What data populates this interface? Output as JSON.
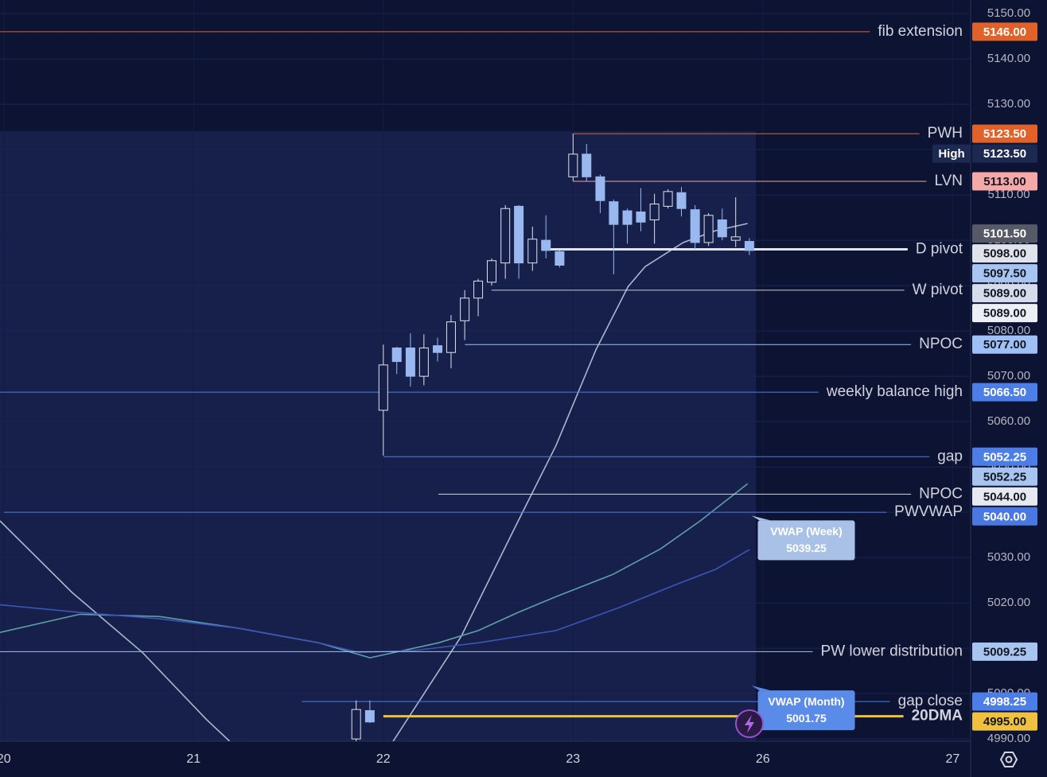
{
  "chart_data": {
    "type": "candlestick",
    "xlim": [
      -0.02,
      5.095
    ],
    "ylim": [
      4989.5,
      5153
    ],
    "xticks": [
      {
        "value": 0,
        "label": "20"
      },
      {
        "value": 1,
        "label": "21"
      },
      {
        "value": 2,
        "label": "22"
      },
      {
        "value": 3,
        "label": "23"
      },
      {
        "value": 4,
        "label": "26"
      },
      {
        "value": 5,
        "label": "27"
      }
    ],
    "yticks": [
      {
        "value": 4990,
        "label": "4990.00"
      },
      {
        "value": 5000,
        "label": "5000.00"
      },
      {
        "value": 5010,
        "label": "5010.00"
      },
      {
        "value": 5020,
        "label": "5020.00"
      },
      {
        "value": 5030,
        "label": "5030.00"
      },
      {
        "value": 5040,
        "label": "5040.00"
      },
      {
        "value": 5050,
        "label": "5050.00"
      },
      {
        "value": 5060,
        "label": "5060.00"
      },
      {
        "value": 5070,
        "label": "5070.00"
      },
      {
        "value": 5080,
        "label": "5080.00"
      },
      {
        "value": 5090,
        "label": "5090.00"
      },
      {
        "value": 5100,
        "label": "5100.00"
      },
      {
        "value": 5110,
        "label": "5110.00"
      },
      {
        "value": 5120,
        "label": "5120.00"
      },
      {
        "value": 5130,
        "label": "5130.00"
      },
      {
        "value": 5140,
        "label": "5140.00"
      },
      {
        "value": 5150,
        "label": "5150.00"
      }
    ],
    "grid": true,
    "up_color": "#e0e3eb",
    "down_color": "#9ab8f0",
    "x": [
      1.857,
      1.929,
      2,
      2.071,
      2.143,
      2.214,
      2.286,
      2.357,
      2.429,
      2.5,
      2.571,
      2.643,
      2.714,
      2.786,
      2.857,
      2.929,
      3,
      3.071,
      3.143,
      3.214,
      3.286,
      3.357,
      3.429,
      3.5,
      3.571,
      3.643,
      3.714,
      3.786,
      3.857,
      3.929
    ],
    "open": [
      4990,
      4996.25,
      5062.5,
      5076.25,
      5076.25,
      5070,
      5076.75,
      5075.25,
      5082.25,
      5087.25,
      5090.75,
      5095,
      5107.5,
      5095,
      5100,
      5097.5,
      5114,
      5119,
      5114,
      5108.5,
      5106.5,
      5106.25,
      5104.5,
      5107.5,
      5110.5,
      5106.75,
      5099.5,
      5104.5,
      5100,
      5099.75
    ],
    "high": [
      4998.5,
      4998.5,
      5077,
      5076.5,
      5079.5,
      5079.25,
      5078.5,
      5083.5,
      5089,
      5091.5,
      5096,
      5107.75,
      5107.75,
      5103,
      5105.5,
      5097.75,
      5123.5,
      5121.25,
      5114.5,
      5109,
      5107,
      5111.5,
      5110.25,
      5111.25,
      5111.75,
      5107.75,
      5106,
      5107,
      5109.5,
      5100.5
    ],
    "low": [
      4988,
      4993.5,
      5052.5,
      5070.5,
      5067.75,
      5068,
      5073.25,
      5071.75,
      5078,
      5083.25,
      5090,
      5091.5,
      5091.5,
      5093.25,
      5096,
      5094,
      5113,
      5113,
      5106,
      5092.5,
      5099.25,
      5102,
      5099.25,
      5107,
      5105.25,
      5098,
      5098.75,
      5100,
      5098.5,
      5096.75
    ],
    "close": [
      4996.5,
      4993.75,
      5072.5,
      5073.25,
      5070,
      5076.25,
      5075.25,
      5082,
      5087.25,
      5091,
      5095.5,
      5107,
      5095,
      5100.25,
      5097.75,
      5094.5,
      5119,
      5114,
      5108.75,
      5103.5,
      5103.5,
      5104,
      5108,
      5110.75,
      5107,
      5099.5,
      5105.5,
      5100.75,
      5100.75,
      5097.75
    ],
    "lines": [
      {
        "color": "#a9b8cc",
        "x": [
          -0.02,
          0.36,
          0.73,
          1.07,
          1.19,
          1.6,
          2.03,
          2.41,
          2.7,
          2.91,
          3.12,
          3.29,
          3.38,
          3.58,
          3.75,
          3.92
        ],
        "values": [
          5038.1,
          5022.3,
          5009.1,
          4994.2,
          4989.5,
          null,
          4988.1,
          5012.6,
          5037.2,
          5054.7,
          5075.8,
          5089.8,
          5094.2,
          5099.5,
          5102.1,
          5103.7
        ]
      },
      {
        "color": "#5fa0a8",
        "x": [
          -0.02,
          0.4,
          0.82,
          1.24,
          1.66,
          1.93,
          2.29,
          2.5,
          2.71,
          2.91,
          3.21,
          3.46,
          3.67,
          3.92
        ],
        "values": [
          5013.5,
          5017.5,
          5017,
          5014.4,
          5011.2,
          5007.9,
          5011.2,
          5013.9,
          5017.9,
          5021.4,
          5026.3,
          5031.9,
          5038.1,
          5046.3
        ]
      },
      {
        "color": "#3d55b8",
        "x": [
          -0.02,
          0.4,
          0.82,
          1.24,
          1.66,
          1.87,
          2.16,
          2.5,
          2.91,
          3.25,
          3.54,
          3.75,
          3.93
        ],
        "values": [
          5019.6,
          5017.9,
          5016.5,
          5014.4,
          5011.2,
          5009.1,
          5009.5,
          5011.2,
          5013.9,
          5019.1,
          5024,
          5027.4,
          5031.8
        ]
      }
    ],
    "levels": [
      {
        "label": "fib extension",
        "price": 5146,
        "color": "#e0622a",
        "from": -0.02
      },
      {
        "label": "PWH",
        "price": 5123.5,
        "color": "#d06a40",
        "from": 3.0
      },
      {
        "label": "LVN",
        "price": 5113,
        "color": "#f0a0a0",
        "from": 3.0
      },
      {
        "label": "D pivot",
        "price": 5098,
        "color": "#e0e3eb",
        "from": 2.87,
        "width": 3
      },
      {
        "label": "W pivot",
        "price": 5089,
        "color": "#c8ccd8",
        "from": 2.57
      },
      {
        "label": "NPOC",
        "price": 5077,
        "color": "#9fc0f5",
        "from": 2.43
      },
      {
        "label": "weekly balance high",
        "price": 5066.5,
        "color": "#4d7ee8",
        "from": -0.02
      },
      {
        "label": "gap",
        "price": 5052.25,
        "color": "#4d7ee8",
        "from": 2.0
      },
      {
        "label": "NPOC",
        "price": 5044,
        "color": "#d0d4e0",
        "from": 2.29
      },
      {
        "label": "PWVWAP",
        "price": 5040,
        "color": "#4d7ee8",
        "from": 0.0
      },
      {
        "label": "PW lower distribution",
        "price": 5009.25,
        "color": "#a8c4f0",
        "from": -0.02
      },
      {
        "label": "gap close",
        "price": 4998.25,
        "color": "#4d7ee8",
        "from": 1.57
      },
      {
        "label": "20DMA",
        "price": 4995,
        "color": "#f0c040",
        "from": 2.0,
        "width": 3,
        "text_color": "#f0c040"
      }
    ],
    "price_tags": [
      {
        "value": 5146,
        "label": "5146.00",
        "color": "#e0622a",
        "text_color": "#ffffff"
      },
      {
        "value": 5123.5,
        "label": "5123.50",
        "color": "#e0622a",
        "text_color": "#ffffff"
      },
      {
        "value": 5123.5,
        "label": "5123.50",
        "color": "#1c2951",
        "text_color": "#ffffff",
        "note": "High"
      },
      {
        "value": 5113,
        "label": "5113.00",
        "color": "#f4a8a8",
        "text_color": "#131722"
      },
      {
        "value": 5101.5,
        "label": "5101.50",
        "color": "#555a66",
        "text_color": "#ffffff"
      },
      {
        "value": 5098,
        "label": "5098.00",
        "color": "#e0e3eb",
        "text_color": "#131722"
      },
      {
        "value": 5097.5,
        "label": "5097.50",
        "color": "#a8c4f0",
        "text_color": "#131722"
      },
      {
        "value": 5089,
        "label": "5089.00",
        "color": "#d6dcea",
        "text_color": "#131722"
      },
      {
        "value": 5089,
        "label": "5089.00",
        "color": "#eceff4",
        "text_color": "#131722"
      },
      {
        "value": 5077,
        "label": "5077.00",
        "color": "#9fc0f5",
        "text_color": "#131722"
      },
      {
        "value": 5066.5,
        "label": "5066.50",
        "color": "#4d7ee8",
        "text_color": "#ffffff"
      },
      {
        "value": 5052.25,
        "label": "5052.25",
        "color": "#4d7ee8",
        "text_color": "#ffffff"
      },
      {
        "value": 5052.25,
        "label": "5052.25",
        "color": "#a8c4f0",
        "text_color": "#131722"
      },
      {
        "value": 5044,
        "label": "5044.00",
        "color": "#e6e9f0",
        "text_color": "#131722"
      },
      {
        "value": 5040,
        "label": "5040.00",
        "color": "#4a78e0",
        "text_color": "#ffffff"
      },
      {
        "value": 5009.25,
        "label": "5009.25",
        "color": "#a8c4f0",
        "text_color": "#131722"
      },
      {
        "value": 4998.25,
        "label": "4998.25",
        "color": "#4d7ee8",
        "text_color": "#ffffff"
      },
      {
        "value": 4995,
        "label": "4995.00",
        "color": "#f0c040",
        "text_color": "#131722"
      }
    ],
    "callouts": [
      {
        "title": "VWAP (Week)",
        "value": 5039.25,
        "value_label": "5039.25",
        "x": 3.94,
        "color": "#a9c1e6"
      },
      {
        "title": "VWAP (Month)",
        "value": 5001.75,
        "value_label": "5001.75",
        "x": 3.94,
        "color": "#5b8be8"
      }
    ]
  }
}
